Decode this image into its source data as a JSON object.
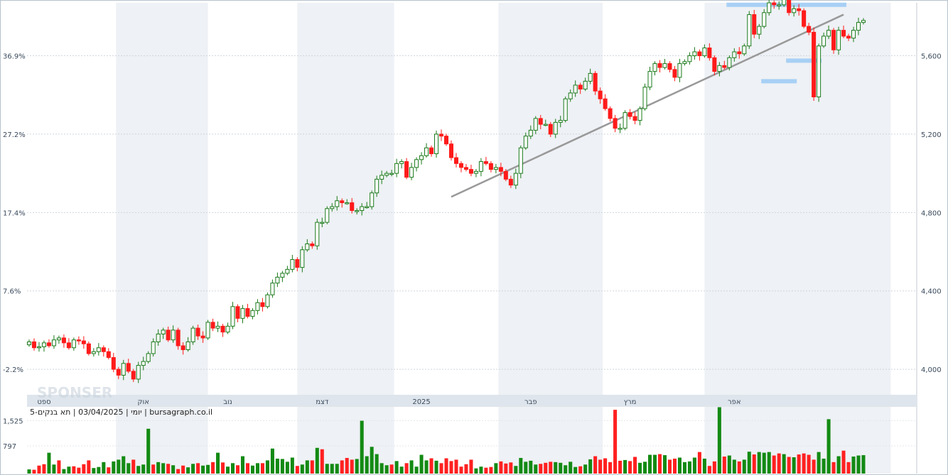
{
  "chart_data": {
    "type": "candlestick",
    "instrument_caption": "יומי | 03/04/2025 | תא בנקים-5 | bursagraph.co.il",
    "watermark": "SPONSER",
    "price_axis": {
      "side": "right",
      "ticks": [
        "4,000",
        "4,400",
        "4,800",
        "5,200",
        "5,600"
      ],
      "tick_values": [
        4000,
        4400,
        4800,
        5200,
        5600
      ],
      "ylim": [
        3870,
        5870
      ]
    },
    "percent_axis": {
      "side": "left",
      "ticks": [
        "-2.2%",
        "7.6%",
        "17.4%",
        "27.2%",
        "36.9%"
      ],
      "tick_values": [
        4000,
        4400,
        4800,
        5200,
        5600
      ]
    },
    "date_axis": {
      "labels": [
        "ספט",
        "אוק",
        "נוב",
        "דצמ",
        "2025",
        "פבר",
        "מרץ",
        "אפר"
      ],
      "label_index": [
        3,
        23,
        40,
        59,
        79,
        101,
        121,
        142
      ]
    },
    "volume_axis": {
      "ticks": [
        "797",
        "1,525"
      ],
      "tick_values": [
        797,
        1525
      ],
      "ylim": [
        0,
        1920
      ]
    },
    "series": {
      "close": [
        4140,
        4110,
        4115,
        4135,
        4120,
        4150,
        4160,
        4135,
        4110,
        4150,
        4145,
        4130,
        4080,
        4090,
        4110,
        4090,
        4060,
        4000,
        3970,
        4030,
        3990,
        3950,
        4020,
        4040,
        4080,
        4140,
        4180,
        4200,
        4150,
        4200,
        4120,
        4100,
        4140,
        4210,
        4170,
        4160,
        4240,
        4210,
        4220,
        4190,
        4220,
        4320,
        4260,
        4310,
        4270,
        4300,
        4340,
        4320,
        4380,
        4440,
        4470,
        4490,
        4510,
        4560,
        4520,
        4610,
        4640,
        4630,
        4750,
        4750,
        4820,
        4830,
        4860,
        4850,
        4850,
        4810,
        4810,
        4830,
        4830,
        4900,
        4970,
        4990,
        5000,
        5000,
        5050,
        5060,
        4980,
        5030,
        5070,
        5090,
        5130,
        5100,
        5200,
        5190,
        5150,
        5080,
        5050,
        5030,
        5020,
        5000,
        5010,
        5060,
        5050,
        5020,
        5030,
        5010,
        4970,
        4940,
        5000,
        5130,
        5190,
        5220,
        5280,
        5250,
        5250,
        5200,
        5260,
        5270,
        5380,
        5410,
        5450,
        5430,
        5470,
        5510,
        5420,
        5380,
        5330,
        5280,
        5230,
        5230,
        5310,
        5290,
        5270,
        5330,
        5440,
        5520,
        5560,
        5540,
        5560,
        5530,
        5490,
        5560,
        5570,
        5600,
        5620,
        5600,
        5640,
        5590,
        5520,
        5550,
        5540,
        5590,
        5620,
        5610,
        5650,
        5810,
        5710,
        5750,
        5820,
        5870,
        5860,
        5860,
        5890,
        5820,
        5840,
        5830,
        5750,
        5720,
        5390,
        5650,
        5700,
        5730,
        5630,
        5730,
        5700,
        5690,
        5730,
        5770,
        5780
      ],
      "volume": [
        120,
        110,
        230,
        270,
        600,
        260,
        380,
        130,
        200,
        210,
        170,
        270,
        380,
        160,
        190,
        330,
        180,
        350,
        400,
        500,
        300,
        400,
        220,
        260,
        270,
        260,
        330,
        300,
        280,
        240,
        130,
        230,
        180,
        280,
        300,
        230,
        250,
        330,
        600,
        320,
        200,
        300,
        240,
        500,
        300,
        230,
        300,
        300,
        380,
        720,
        430,
        420,
        340,
        460,
        220,
        260,
        380,
        380,
        740,
        700,
        280,
        280,
        280,
        380,
        450,
        400,
        420,
        360,
        500,
        770,
        560,
        300,
        240,
        260,
        360,
        200,
        300,
        380,
        200,
        540,
        380,
        440,
        370,
        300,
        440,
        360,
        400,
        200,
        270,
        400,
        150,
        200,
        170,
        190,
        300,
        350,
        290,
        320,
        220,
        450,
        340,
        370,
        260,
        280,
        310,
        340,
        330,
        310,
        240,
        340,
        190,
        210,
        260,
        410,
        500,
        400,
        440,
        330,
        540,
        370,
        390,
        360,
        480,
        310,
        340,
        540,
        540,
        560,
        530,
        400,
        430,
        460,
        330,
        350,
        460,
        620,
        430,
        220,
        350,
        510,
        490,
        520,
        400,
        350,
        400,
        630,
        550,
        620,
        600,
        620,
        520,
        580,
        560,
        480,
        470,
        550,
        580,
        540,
        400,
        620,
        430,
        460,
        330,
        500,
        660,
        330,
        490,
        520,
        530
      ],
      "volume_dir": [
        1,
        0,
        0,
        0,
        1,
        1,
        0,
        1,
        1,
        0,
        0,
        0,
        0,
        1,
        1,
        1,
        0,
        1,
        1,
        1,
        1,
        0,
        1,
        1,
        1,
        0,
        1,
        1,
        0,
        1,
        0,
        0,
        1,
        1,
        0,
        1,
        1,
        0,
        1,
        0,
        1,
        1,
        0,
        1,
        0,
        1,
        1,
        0,
        1,
        1,
        1,
        1,
        1,
        1,
        0,
        1,
        1,
        0,
        1,
        0,
        1,
        1,
        1,
        0,
        0,
        0,
        1,
        1,
        1,
        1,
        1,
        1,
        1,
        0,
        1,
        1,
        0,
        1,
        1,
        1,
        1,
        0,
        1,
        0,
        0,
        0,
        0,
        0,
        0,
        0,
        1,
        1,
        0,
        0,
        1,
        0,
        0,
        0,
        1,
        1,
        1,
        1,
        1,
        0,
        0,
        0,
        1,
        1,
        1,
        1,
        1,
        0,
        1,
        1,
        0,
        0,
        0,
        0,
        0,
        0,
        1,
        0,
        0,
        1,
        1,
        1,
        1,
        0,
        1,
        0,
        0,
        1,
        1,
        1,
        1,
        0,
        1,
        0,
        0,
        1,
        0,
        1,
        1,
        0,
        1,
        1,
        0,
        1,
        1,
        1,
        0,
        0,
        1,
        0,
        1,
        0,
        0,
        0,
        0,
        1,
        1,
        1,
        0,
        1,
        0,
        0,
        1,
        1,
        1
      ],
      "volume_peaks": {
        "index": [
          24,
          67,
          118,
          139,
          161
        ],
        "values": [
          1290,
          1520,
          1835,
          1910,
          1565
        ]
      }
    },
    "annotations": [
      {
        "type": "trendline",
        "from": [
          85,
          4880
        ],
        "to": [
          164,
          5810
        ]
      },
      {
        "type": "level",
        "from": [
          141,
          5860
        ],
        "to": [
          164,
          5860
        ]
      },
      {
        "type": "level",
        "from": [
          153,
          5575
        ],
        "to": [
          159,
          5575
        ]
      },
      {
        "type": "level",
        "from": [
          148,
          5470
        ],
        "to": [
          154,
          5470
        ]
      }
    ],
    "grid": true,
    "colors": {
      "up_border": "#1a7a1a",
      "up_fill": "#ffffff",
      "down": "#ff1a1a",
      "volume_up": "#138a13",
      "volume_down": "#ff2020",
      "annotation_level": "#a8d0f5",
      "trendline": "#999999",
      "band": "#eef1f5"
    }
  }
}
